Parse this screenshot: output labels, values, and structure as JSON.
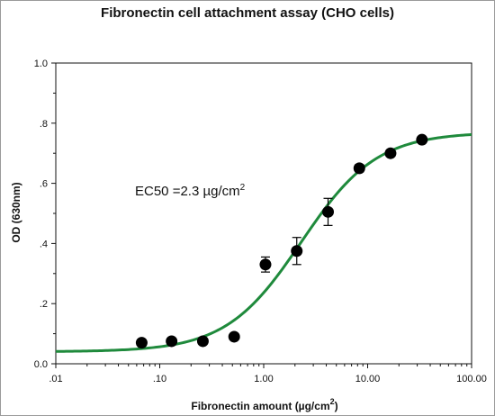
{
  "chart_data": {
    "type": "scatter",
    "title": "Fibronectin cell attachment assay (CHO cells)",
    "xlabel": {
      "text": "Fibronectin amount (µg/cm",
      "sup": "2",
      "close": ")"
    },
    "ylabel": "OD (630nm)",
    "x_scale": "log",
    "xlim": [
      0.01,
      100
    ],
    "ylim": [
      0,
      1.0
    ],
    "x_ticks": [
      {
        "value": 0.01,
        "label": ".01"
      },
      {
        "value": 0.1,
        "label": ".10"
      },
      {
        "value": 1,
        "label": "1.00"
      },
      {
        "value": 10,
        "label": "10.00"
      },
      {
        "value": 100,
        "label": "100.00"
      }
    ],
    "y_ticks": [
      {
        "value": 0,
        "label": "0.0"
      },
      {
        "value": 0.2,
        "label": ".2"
      },
      {
        "value": 0.4,
        "label": ".4"
      },
      {
        "value": 0.6,
        "label": ".6"
      },
      {
        "value": 0.8,
        "label": ".8"
      },
      {
        "value": 1.0,
        "label": "1.0"
      }
    ],
    "points": [
      {
        "x": 0.067,
        "y": 0.07,
        "err": 0
      },
      {
        "x": 0.13,
        "y": 0.075,
        "err": 0
      },
      {
        "x": 0.26,
        "y": 0.075,
        "err": 0
      },
      {
        "x": 0.52,
        "y": 0.09,
        "err": 0
      },
      {
        "x": 1.04,
        "y": 0.33,
        "err": 0.025
      },
      {
        "x": 2.08,
        "y": 0.375,
        "err": 0.045
      },
      {
        "x": 4.16,
        "y": 0.505,
        "err": 0.045
      },
      {
        "x": 8.32,
        "y": 0.65,
        "err": 0.012
      },
      {
        "x": 16.6,
        "y": 0.7,
        "err": 0.01
      },
      {
        "x": 33.3,
        "y": 0.745,
        "err": 0.01
      }
    ],
    "fit": {
      "bottom": 0.04,
      "top": 0.77,
      "ec50": 2.3,
      "hill": 1.2
    },
    "annotation": {
      "prefix": "EC50 =2.3 µg/cm",
      "sup": "2"
    },
    "colors": {
      "fit": "#1f8a3c",
      "points": "#000000",
      "axes": "#111111"
    },
    "grid": false
  }
}
